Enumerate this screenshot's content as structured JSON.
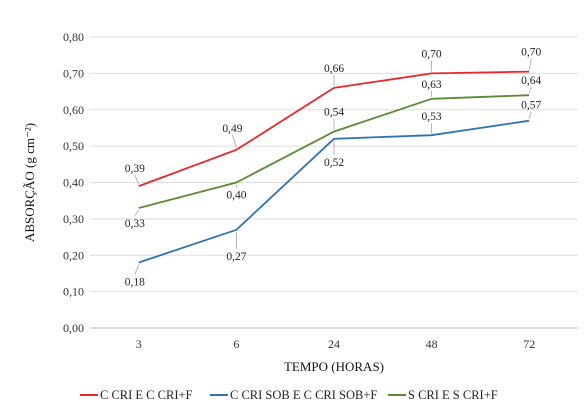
{
  "chart_data": {
    "type": "line",
    "title": "",
    "xlabel": "TEMPO (HORAS)",
    "ylabel": "ABSORÇÃO (g cm⁻²)",
    "categories": [
      "3",
      "6",
      "24",
      "48",
      "72"
    ],
    "ylim": [
      0,
      0.8
    ],
    "yticks": [
      "0,00",
      "0,10",
      "0,20",
      "0,30",
      "0,40",
      "0,50",
      "0,60",
      "0,70",
      "0,80"
    ],
    "grid": true,
    "legend_position": "bottom",
    "series": [
      {
        "name": "C CRI E C CRI+F",
        "color": "#e8262b",
        "values": [
          0.39,
          0.49,
          0.66,
          0.7,
          0.705
        ],
        "labels": [
          "0,39",
          "0,49",
          "0,66",
          "0,70",
          "0,70"
        ]
      },
      {
        "name": "C CRI SOB E C CRI SOB+F",
        "color": "#2e75b6",
        "values": [
          0.18,
          0.27,
          0.52,
          0.53,
          0.57
        ],
        "labels": [
          "0,18",
          "0,27",
          "0,52",
          "0,53",
          "0,57"
        ]
      },
      {
        "name": "S CRI E S CRI+F",
        "color": "#5b8c32",
        "values": [
          0.33,
          0.4,
          0.54,
          0.63,
          0.64
        ],
        "labels": [
          "0,33",
          "0,40",
          "0,54",
          "0,63",
          "0,64"
        ]
      }
    ]
  }
}
